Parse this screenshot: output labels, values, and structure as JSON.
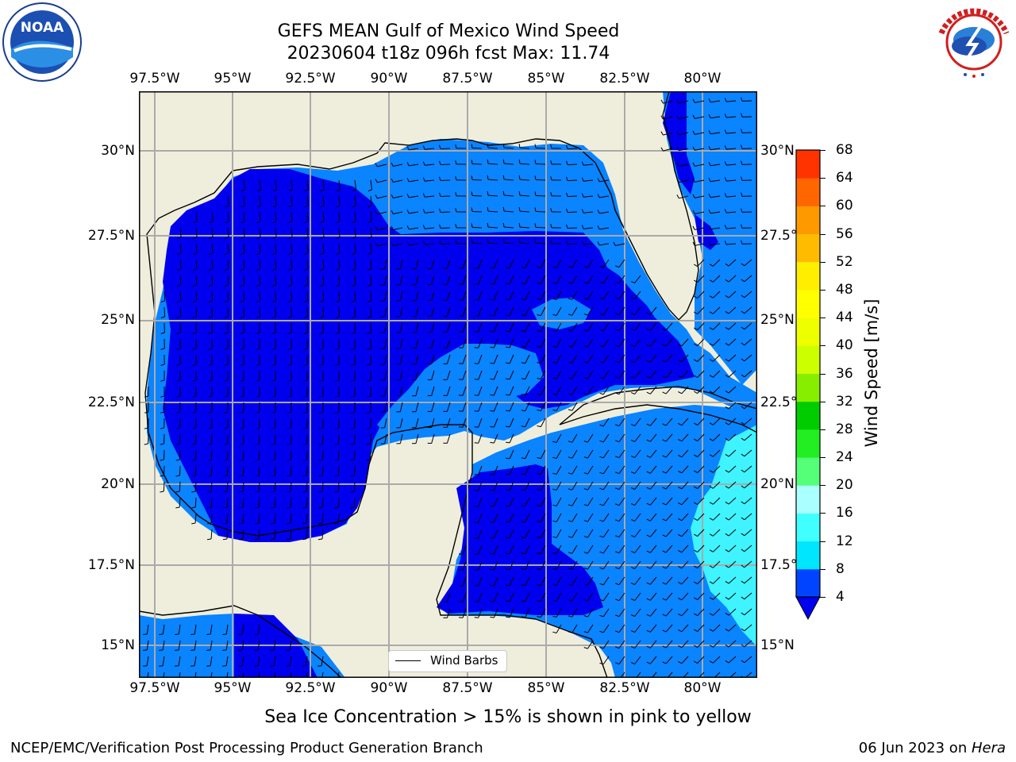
{
  "title": {
    "line1": "GEFS MEAN Gulf of Mexico Wind Speed",
    "line2": "20230604 t18z 096h fcst   Max: 11.74"
  },
  "axes": {
    "lon_ticks": [
      "97.5°W",
      "95°W",
      "92.5°W",
      "90°W",
      "87.5°W",
      "85°W",
      "82.5°W",
      "80°W"
    ],
    "lat_ticks_left": [
      "30°N",
      "27.5°N",
      "25°N",
      "22.5°N",
      "20°N",
      "17.5°N",
      "15°N"
    ],
    "lat_ticks_right": [
      "30°N",
      "27.5°",
      "25°N",
      "22.5°",
      "20°N",
      "17.5°",
      "15°N"
    ]
  },
  "colorbar": {
    "title": "Wind Speed [m/s]",
    "levels": [
      "4",
      "8",
      "12",
      "16",
      "20",
      "24",
      "28",
      "32",
      "36",
      "40",
      "44",
      "48",
      "52",
      "56",
      "60",
      "64",
      "68"
    ],
    "colors": [
      "#0044ff",
      "#00e6ff",
      "#40ffff",
      "#aaffff",
      "#55ff77",
      "#22ee22",
      "#00cc00",
      "#88ee00",
      "#ccff00",
      "#eeff00",
      "#ffff00",
      "#ffee00",
      "#ffbb00",
      "#ff9900",
      "#ff6600",
      "#ff3300",
      "#ff0000"
    ],
    "under_color": "#0000ee"
  },
  "legend": {
    "label": "Wind Barbs"
  },
  "caption": "Sea Ice Concentration > 15% is shown in pink to yellow",
  "footer": {
    "left": "NCEP/EMC/Verification Post Processing Product Generation Branch",
    "right_prefix": "06 Jun 2023 on ",
    "right_machine": "Hera"
  },
  "logos": {
    "left": "NOAA",
    "right": "NATIONAL WEATHER SERVICE"
  },
  "colors": {
    "land": "#efeedd",
    "ocean_low": "#0000ee",
    "ocean_mid": "#0a84ff",
    "ocean_high": "#3ff3ff",
    "grid": "#aaaaaa"
  }
}
